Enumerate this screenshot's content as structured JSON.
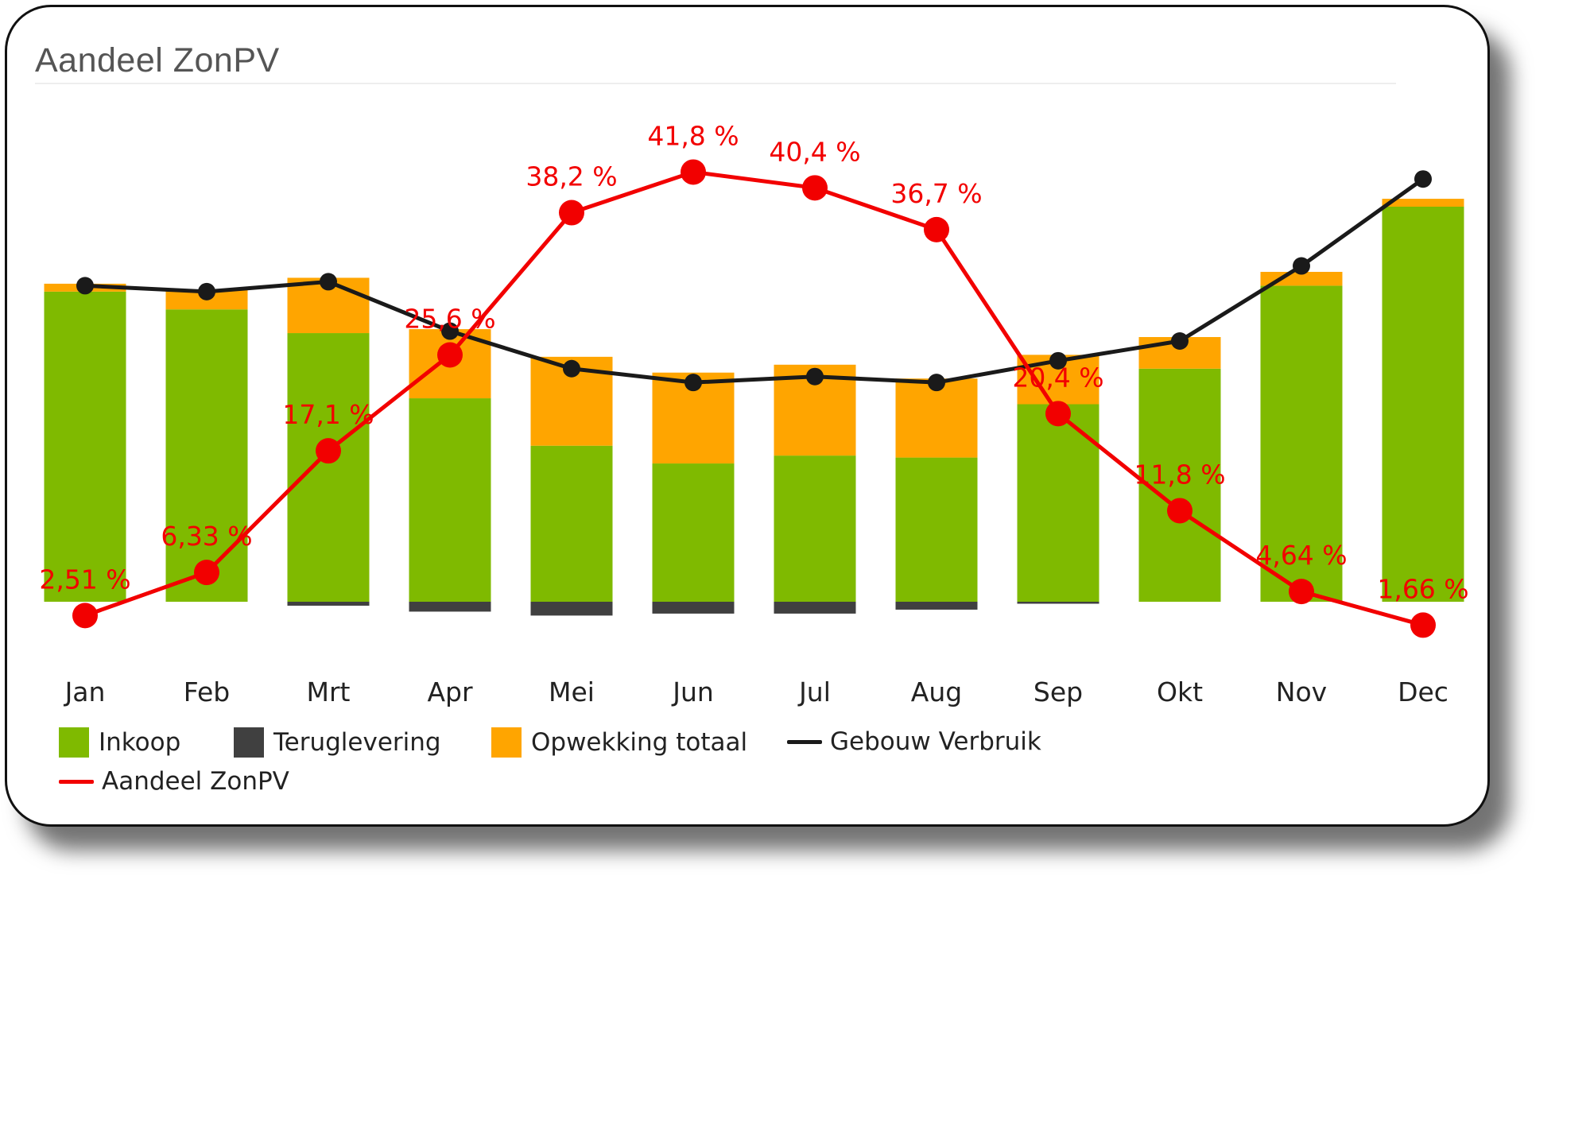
{
  "title": "Aandeel ZonPV",
  "colors": {
    "inkoop": "#7fba00",
    "teruglevering": "#404040",
    "opwekking": "#ffa500",
    "verbruik": "#1a1a1a",
    "aandeel": "#f20000"
  },
  "legend": {
    "inkoop": "Inkoop",
    "teruglevering": "Teruglevering",
    "opwekking": "Opwekking totaal",
    "verbruik": "Gebouw Verbruik",
    "aandeel": "Aandeel ZonPV"
  },
  "chart_data": {
    "type": "bar",
    "categories": [
      "Jan",
      "Feb",
      "Mrt",
      "Apr",
      "Mei",
      "Jun",
      "Jul",
      "Aug",
      "Sep",
      "Okt",
      "Nov",
      "Dec"
    ],
    "series": [
      {
        "name": "Inkoop",
        "kind": "bar",
        "values": [
          78.5,
          74.0,
          68.0,
          51.5,
          39.5,
          35.0,
          37.0,
          36.5,
          50.0,
          59.0,
          80.0,
          100.0
        ]
      },
      {
        "name": "Teruglevering",
        "kind": "bar-negative",
        "values": [
          0,
          0,
          -1.0,
          -2.5,
          -3.5,
          -3.0,
          -3.0,
          -2.0,
          -0.5,
          0,
          0,
          0
        ]
      },
      {
        "name": "Opwekking totaal",
        "kind": "bar-stacked",
        "values": [
          2.0,
          5.0,
          14.0,
          17.5,
          22.5,
          23.0,
          23.0,
          20.0,
          12.5,
          8.0,
          3.5,
          2.0
        ]
      },
      {
        "name": "Gebouw Verbruik",
        "kind": "line",
        "values": [
          80.0,
          78.5,
          81.0,
          68.5,
          59.0,
          55.5,
          57.0,
          55.5,
          61.0,
          66.0,
          85.0,
          107.0
        ]
      },
      {
        "name": "Aandeel ZonPV",
        "kind": "line-percent",
        "values": [
          2.51,
          6.33,
          17.1,
          25.6,
          38.2,
          41.8,
          40.4,
          36.7,
          20.4,
          11.8,
          4.64,
          1.66
        ],
        "labels": [
          "2,51 %",
          "6,33 %",
          "17,1 %",
          "25,6 %",
          "38,2 %",
          "41,8 %",
          "40,4 %",
          "36,7 %",
          "20,4 %",
          "11,8 %",
          "4,64 %",
          "1,66 %"
        ]
      }
    ],
    "y_axis_visible": false,
    "grid": false,
    "legend_position": "bottom-left"
  }
}
